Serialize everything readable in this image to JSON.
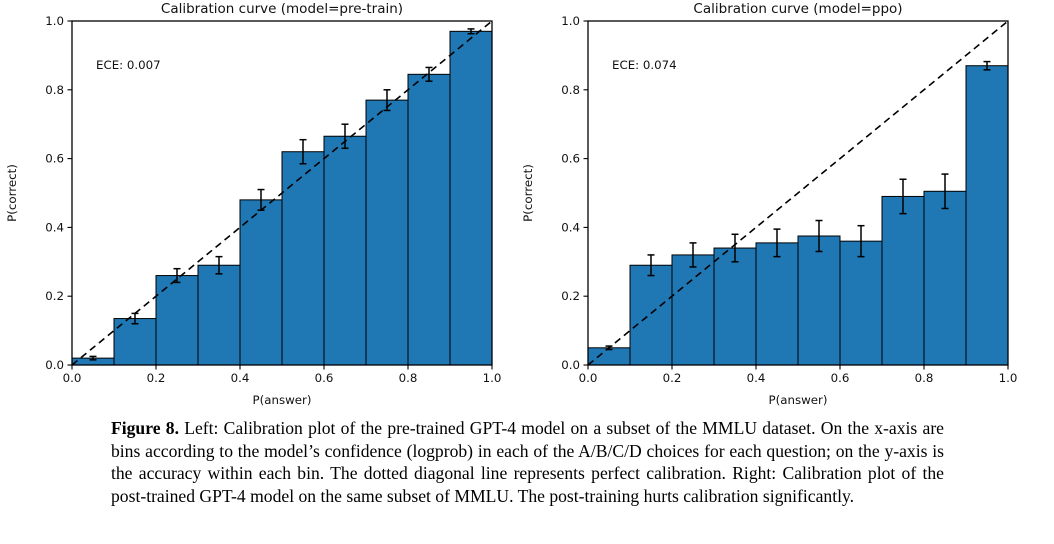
{
  "figure": {
    "background": "#ffffff"
  },
  "chart_data": [
    {
      "type": "bar",
      "title": "Calibration curve (model=pre-train)",
      "annotation": "ECE: 0.007",
      "xlabel": "P(answer)",
      "ylabel": "P(correct)",
      "bin_edges": [
        0.0,
        0.1,
        0.2,
        0.3,
        0.4,
        0.5,
        0.6,
        0.7,
        0.8,
        0.9,
        1.0
      ],
      "values": [
        0.02,
        0.135,
        0.26,
        0.29,
        0.48,
        0.62,
        0.665,
        0.77,
        0.845,
        0.97
      ],
      "errors": [
        0.005,
        0.015,
        0.02,
        0.025,
        0.03,
        0.035,
        0.035,
        0.03,
        0.02,
        0.007
      ],
      "xlim": [
        0.0,
        1.0
      ],
      "ylim": [
        0.0,
        1.0
      ],
      "xticks": [
        0.0,
        0.2,
        0.4,
        0.6,
        0.8,
        1.0
      ],
      "yticks": [
        0.0,
        0.2,
        0.4,
        0.6,
        0.8,
        1.0
      ],
      "bar_color": "#1f77b4",
      "bar_edge_color": "#000000",
      "errorbar_color": "#000000",
      "diagonal_line": {
        "style": "dashed",
        "from": [
          0.0,
          0.0
        ],
        "to": [
          1.0,
          1.0
        ],
        "color": "#000000"
      },
      "grid": false,
      "legend": false
    },
    {
      "type": "bar",
      "title": "Calibration curve (model=ppo)",
      "annotation": "ECE: 0.074",
      "xlabel": "P(answer)",
      "ylabel": "P(correct)",
      "bin_edges": [
        0.0,
        0.1,
        0.2,
        0.3,
        0.4,
        0.5,
        0.6,
        0.7,
        0.8,
        0.9,
        1.0
      ],
      "values": [
        0.05,
        0.29,
        0.32,
        0.34,
        0.355,
        0.375,
        0.36,
        0.49,
        0.505,
        0.87
      ],
      "errors": [
        0.005,
        0.03,
        0.035,
        0.04,
        0.04,
        0.045,
        0.045,
        0.05,
        0.05,
        0.012
      ],
      "xlim": [
        0.0,
        1.0
      ],
      "ylim": [
        0.0,
        1.0
      ],
      "xticks": [
        0.0,
        0.2,
        0.4,
        0.6,
        0.8,
        1.0
      ],
      "yticks": [
        0.0,
        0.2,
        0.4,
        0.6,
        0.8,
        1.0
      ],
      "bar_color": "#1f77b4",
      "bar_edge_color": "#000000",
      "errorbar_color": "#000000",
      "diagonal_line": {
        "style": "dashed",
        "from": [
          0.0,
          0.0
        ],
        "to": [
          1.0,
          1.0
        ],
        "color": "#000000"
      },
      "grid": false,
      "legend": false
    }
  ],
  "caption": {
    "label": "Figure 8.",
    "text": "Left: Calibration plot of the pre-trained GPT-4 model on a subset of the MMLU dataset. On the x-axis are bins according to the model’s confidence (logprob) in each of the A/B/C/D choices for each question; on the y-axis is the accuracy within each bin. The dotted diagonal line represents perfect calibration. Right: Calibration plot of the post-trained GPT-4 model on the same subset of MMLU. The post-training hurts calibration significantly."
  }
}
